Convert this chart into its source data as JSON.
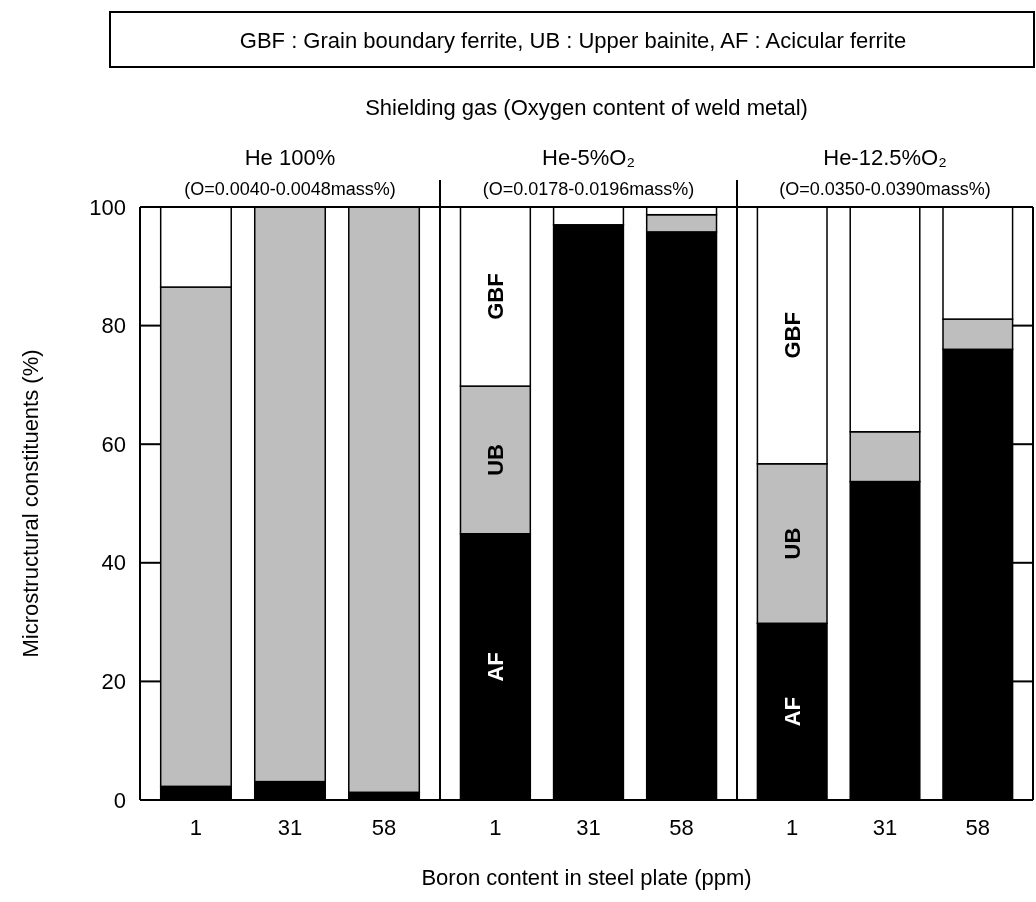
{
  "chart_data": [
    {
      "type": "bar",
      "stacked": true,
      "title": "He 100%",
      "subtitle": "(O=0.0040-0.0048mass%)",
      "ylabel": "Microstructural constituents   (%)",
      "annotations": [
        "GBF : Grain boundary ferrite, UB : Upper bainite, AF : Acicular ferrite",
        "Shielding gas  (Oxygen content of weld metal)"
      ],
      "categories": [
        "1",
        "31",
        "58"
      ],
      "ylim": [
        0,
        100
      ],
      "yticks": [
        0,
        20,
        40,
        60,
        80,
        100
      ],
      "series": [
        {
          "color": "#000000",
          "values": [
            2.3,
            3.1,
            1.3
          ]
        },
        {
          "color": "#bebebe",
          "values": [
            84.2,
            96.9,
            98.7
          ]
        },
        {
          "color": "#ffffff",
          "values": [
            13.5,
            0,
            0
          ]
        }
      ]
    },
    {
      "type": "bar",
      "stacked": true,
      "title": "He-5%O₂",
      "subtitle": "(O=0.0178-0.0196mass%)",
      "xlabel": "Boron content in steel plate   (ppm)",
      "categories": [
        "1",
        "31",
        "58"
      ],
      "ylim": [
        0,
        100
      ],
      "tick_labels": "x",
      "series": [
        {
          "name": "AF",
          "color": "#000000",
          "values": [
            44.9,
            97.0,
            95.8
          ]
        },
        {
          "name": "UB",
          "color": "#bebebe",
          "values": [
            24.9,
            0,
            2.9
          ]
        },
        {
          "name": "GBF",
          "color": "#ffffff",
          "values": [
            30.2,
            3.0,
            1.3
          ]
        }
      ]
    },
    {
      "type": "bar",
      "stacked": true,
      "title": "He-12.5%O₂",
      "subtitle": "(O=0.0350-0.0390mass%)",
      "categories": [
        "1",
        "31",
        "58"
      ],
      "ylim": [
        0,
        100
      ],
      "tick_labels": "x",
      "yticks": [
        {
          "value": 20,
          "label": null
        },
        {
          "value": 40,
          "label": null
        },
        {
          "value": 60,
          "label": null
        },
        {
          "value": 80,
          "label": null
        }
      ],
      "series": [
        {
          "name": "AF",
          "color": "#000000",
          "values": [
            29.8,
            53.7,
            76.0
          ]
        },
        {
          "name": "UB",
          "color": "#bebebe",
          "values": [
            26.9,
            8.4,
            5.1
          ]
        },
        {
          "name": "GBF",
          "color": "#ffffff",
          "values": [
            43.3,
            37.9,
            18.9
          ]
        }
      ]
    }
  ]
}
